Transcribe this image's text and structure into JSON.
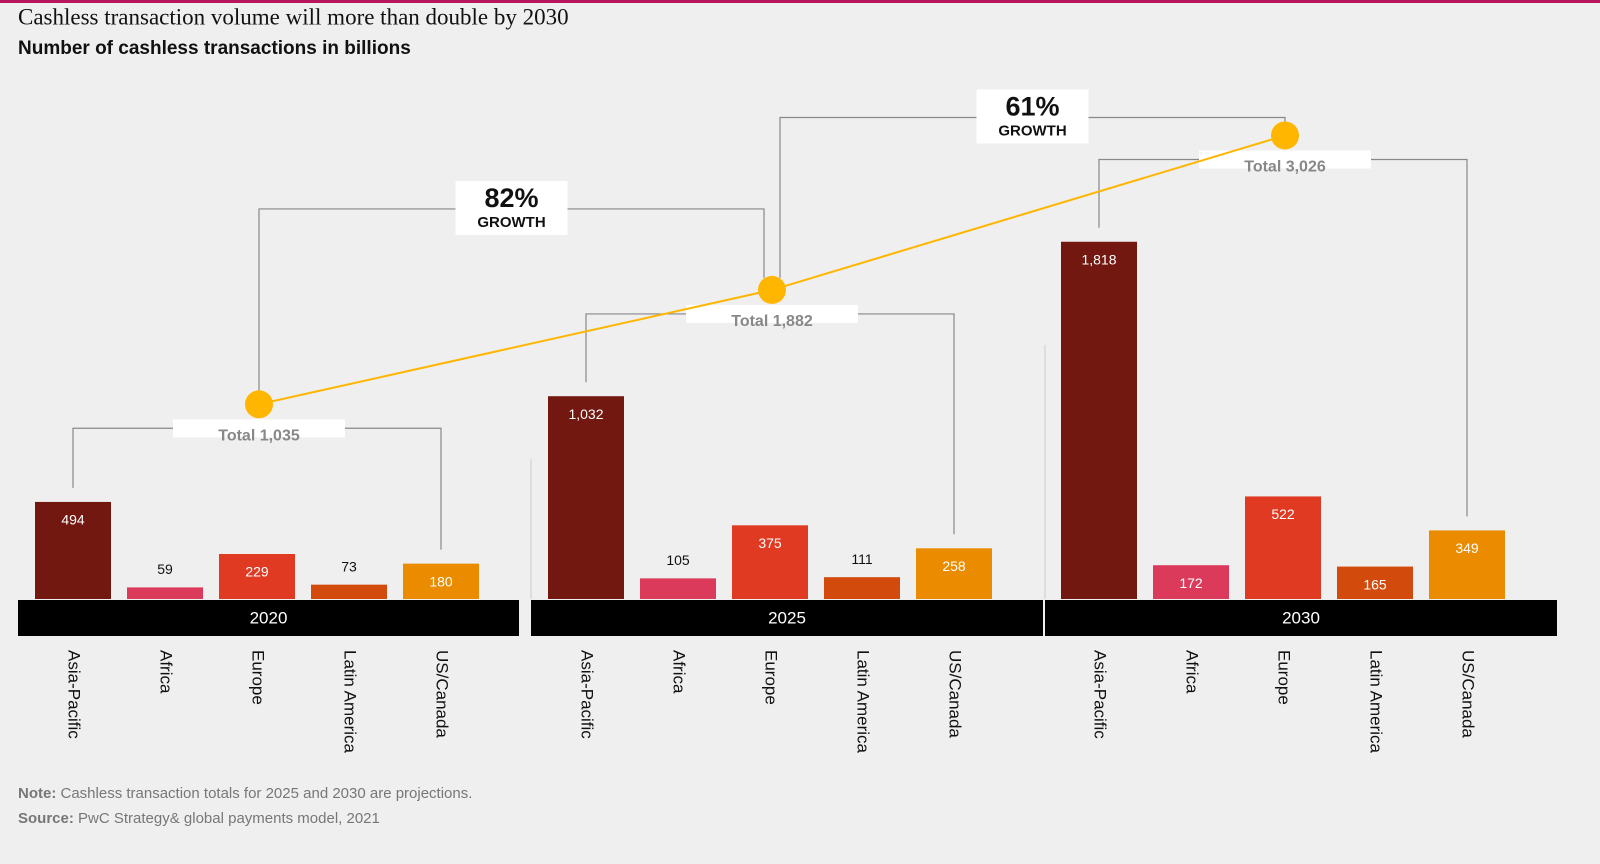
{
  "chart_data": {
    "type": "bar",
    "title": "Cashless transaction volume will more than double by 2030",
    "subtitle": "Number of cashless transactions in billions",
    "categories": [
      "Asia-Pacific",
      "Africa",
      "Europe",
      "Latin America",
      "US/Canada"
    ],
    "colors": [
      "#721811",
      "#db3a5a",
      "#e03a22",
      "#d24b0c",
      "#eb8c00"
    ],
    "series": [
      {
        "name": "2020",
        "values": [
          494,
          59,
          229,
          73,
          180
        ],
        "value_labels": [
          "494",
          "59",
          "229",
          "73",
          "180"
        ]
      },
      {
        "name": "2025",
        "values": [
          1032,
          105,
          375,
          111,
          258
        ],
        "value_labels": [
          "1,032",
          "105",
          "375",
          "111",
          "258"
        ]
      },
      {
        "name": "2030",
        "values": [
          1818,
          172,
          522,
          165,
          349
        ],
        "value_labels": [
          "1,818",
          "172",
          "522",
          "165",
          "349"
        ]
      }
    ],
    "ylim": [
      0,
      2000
    ],
    "totals": {
      "axis": "y2",
      "color": "#ffb600",
      "values": [
        1035,
        1882,
        3026
      ],
      "value_labels": [
        "Total 1,035",
        "Total 1,882",
        "Total 3,026"
      ]
    },
    "y2lim": [
      0,
      4000
    ],
    "growth": {
      "values": [
        82,
        61
      ],
      "value_labels": [
        "82%",
        "61%"
      ],
      "text": "GROWTH"
    },
    "note": {
      "label": "Note:",
      "text": "Cashless transaction totals for 2025 and 2030 are projections."
    },
    "source": {
      "label": "Source:",
      "text": "PwC Strategy& global payments model, 2021"
    }
  }
}
